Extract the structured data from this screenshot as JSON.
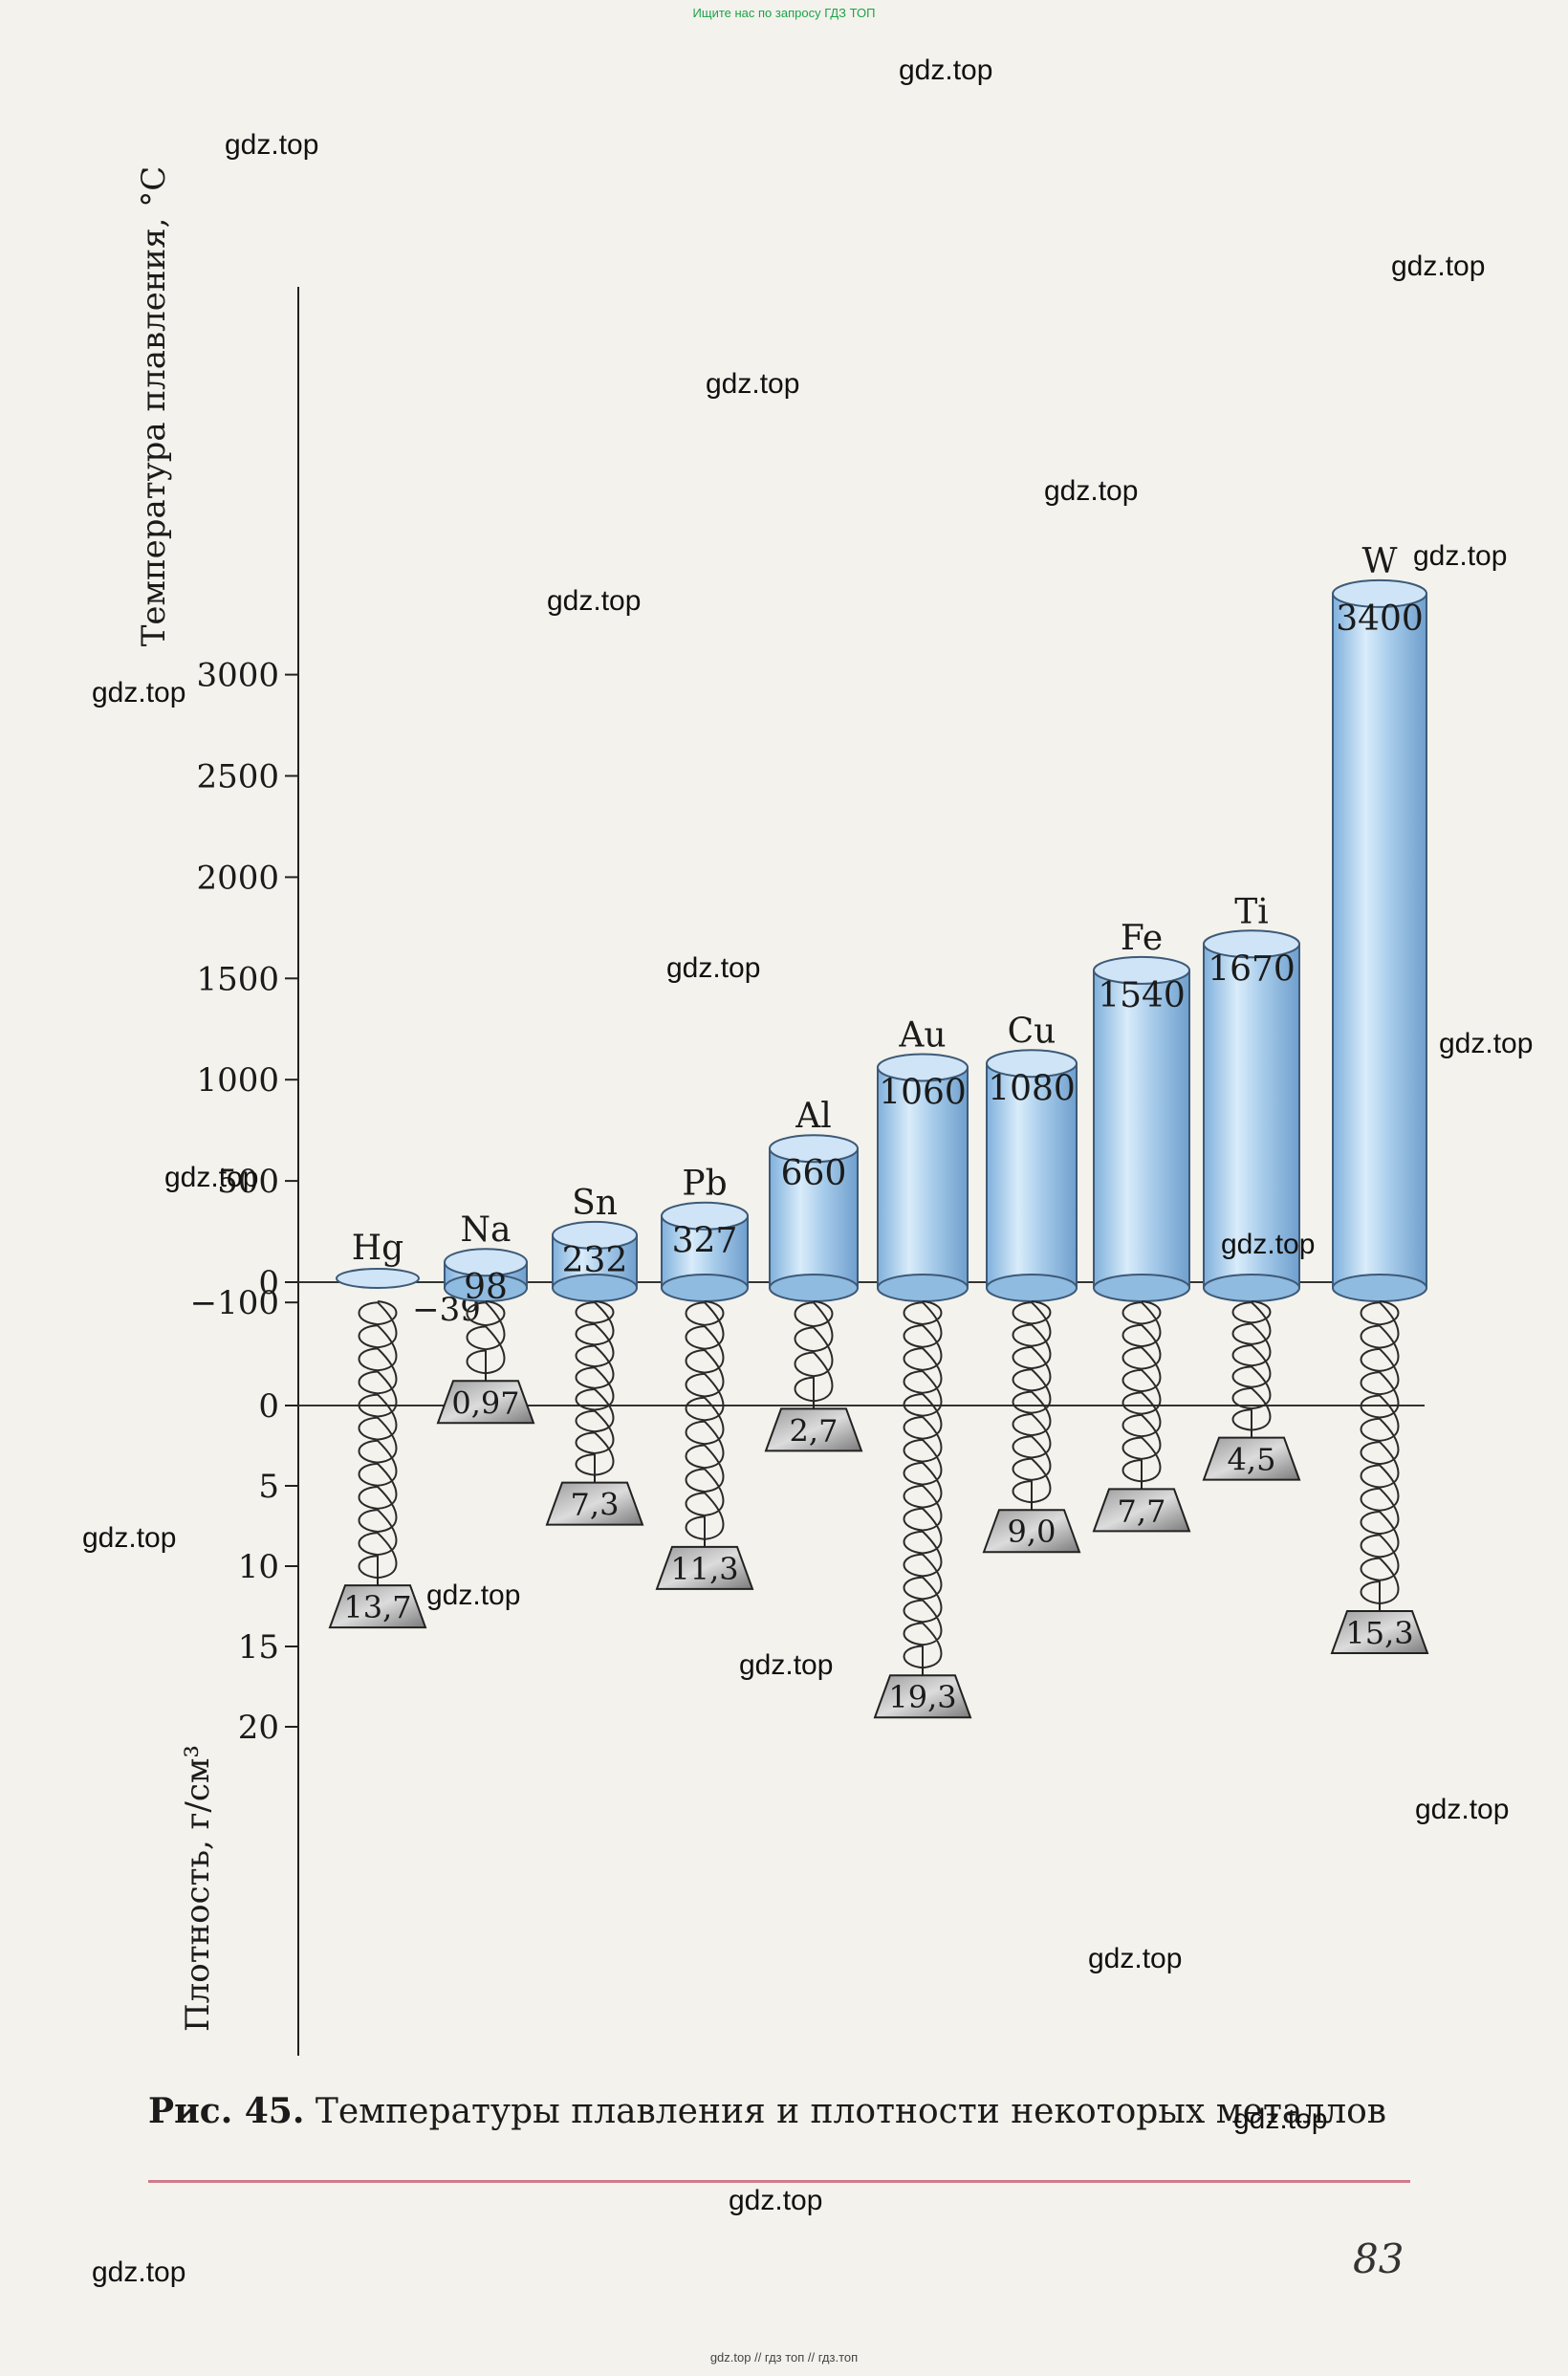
{
  "banner_top": "Ищите нас по запросу ГДЗ ТОП",
  "banner_bottom": "gdz.top // гдз топ // гдз.топ",
  "watermark": "gdz.top",
  "caption": {
    "label": "Рис. 45.",
    "text": "Температуры плавления и плотности некоторых металлов"
  },
  "page_number": "83",
  "colors": {
    "cylinder_fill": "#a9cdeb",
    "cylinder_edge": "#3d5a78",
    "page_background": "#f4f2ec",
    "caption_rule": "#d07a8a"
  },
  "chart_data": {
    "type": "bar",
    "categories": [
      "Hg",
      "Na",
      "Sn",
      "Pb",
      "Al",
      "Au",
      "Cu",
      "Fe",
      "Ti",
      "W"
    ],
    "series": [
      {
        "name": "Температура плавления, °C",
        "values": [
          -39,
          98,
          232,
          327,
          660,
          1060,
          1080,
          1540,
          1670,
          3400
        ],
        "labels": [
          "−39",
          "98",
          "232",
          "327",
          "660",
          "1060",
          "1080",
          "1540",
          "1670",
          "3400"
        ]
      },
      {
        "name": "Плотность, г/см³",
        "values": [
          13.7,
          0.97,
          7.3,
          11.3,
          2.7,
          19.3,
          9.0,
          7.7,
          4.5,
          15.3
        ],
        "labels": [
          "13,7",
          "0,97",
          "7,3",
          "11,3",
          "2,7",
          "19,3",
          "9,0",
          "7,7",
          "4,5",
          "15,3"
        ]
      }
    ],
    "axes": {
      "temperature": {
        "label": "Температура плавления, °C",
        "ticks": [
          {
            "value": -100,
            "label": "−100"
          },
          {
            "value": 0,
            "label": "0"
          },
          {
            "value": 500,
            "label": "500"
          },
          {
            "value": 1000,
            "label": "1000"
          },
          {
            "value": 1500,
            "label": "1500"
          },
          {
            "value": 2000,
            "label": "2000"
          },
          {
            "value": 2500,
            "label": "2500"
          },
          {
            "value": 3000,
            "label": "3000"
          }
        ],
        "ylim": [
          -100,
          3400
        ]
      },
      "density": {
        "label": "Плотность, г/см³",
        "ticks": [
          {
            "value": 0,
            "label": "0"
          },
          {
            "value": 5,
            "label": "5"
          },
          {
            "value": 10,
            "label": "10"
          },
          {
            "value": 15,
            "label": "15"
          },
          {
            "value": 20,
            "label": "20"
          }
        ],
        "ylim": [
          0,
          20
        ],
        "inverted": true
      }
    },
    "grid": false,
    "legend": "none"
  }
}
